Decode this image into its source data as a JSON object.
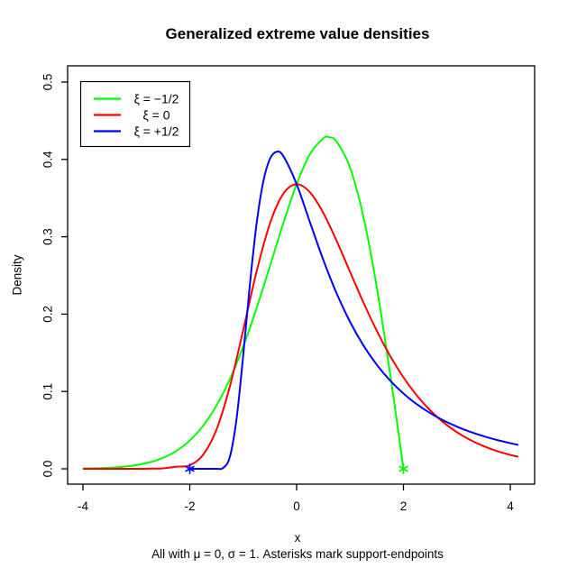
{
  "chart_data": {
    "type": "line",
    "title": "Generalized extreme value densities",
    "xlabel": "x",
    "ylabel": "Density",
    "caption": "All with μ = 0, σ = 1. Asterisks mark support-endpoints",
    "xlim": [
      -4,
      4
    ],
    "ylim": [
      0.0,
      0.5
    ],
    "grid": false,
    "xticks": {
      "values": [
        -4,
        -2,
        0,
        2,
        4
      ],
      "labels": [
        "-4",
        "-2",
        "0",
        "2",
        "4"
      ]
    },
    "yticks": {
      "values": [
        0.0,
        0.1,
        0.2,
        0.3,
        0.4,
        0.5
      ],
      "labels": [
        "0.0",
        "0.1",
        "0.2",
        "0.3",
        "0.4",
        "0.5"
      ]
    },
    "legend": {
      "position": "top-left",
      "entries": [
        {
          "label": "ξ = −1/2",
          "color": "#00FF00"
        },
        {
          "label": "ξ = 0",
          "color": "#FF0000"
        },
        {
          "label": "ξ = +1/2",
          "color": "#0000FF"
        }
      ]
    },
    "series": [
      {
        "id": "xi-minus-half",
        "label": "ξ = −1/2",
        "color": "#00FF00",
        "points": [
          [
            -4,
            0.00037
          ],
          [
            -3.75,
            0.00074
          ],
          [
            -3.5,
            0.00143
          ],
          [
            -3.25,
            0.00267
          ],
          [
            -3,
            0.00483
          ],
          [
            -2.75,
            0.00843
          ],
          [
            -2.5,
            0.01424
          ],
          [
            -2.25,
            0.02324
          ],
          [
            -2,
            0.03663
          ],
          [
            -1.75,
            0.05574
          ],
          [
            -1.5,
            0.08185
          ],
          [
            -1.25,
            0.11589
          ],
          [
            -1,
            0.1581
          ],
          [
            -0.75,
            0.2076
          ],
          [
            -0.5,
            0.26201
          ],
          [
            -0.25,
            0.31732
          ],
          [
            0,
            0.36788
          ],
          [
            0.25,
            0.40691
          ],
          [
            0.5,
            0.42733
          ],
          [
            0.6,
            0.42884
          ],
          [
            0.75,
            0.42289
          ],
          [
            1,
            0.3894
          ],
          [
            1.25,
            0.32581
          ],
          [
            1.5,
            0.23485
          ],
          [
            1.75,
            0.12306
          ],
          [
            1.875,
            0.06226
          ],
          [
            1.95,
            0.02498
          ],
          [
            2,
            0
          ]
        ]
      },
      {
        "id": "xi-zero",
        "label": "ξ = 0",
        "color": "#FF0000",
        "points": [
          [
            -4,
            0
          ],
          [
            -3.5,
            0
          ],
          [
            -3,
            4e-05
          ],
          [
            -2.75,
            0.00025
          ],
          [
            -2.5,
            0.00062
          ],
          [
            -2.25,
            0.00272
          ],
          [
            -2,
            0.00456
          ],
          [
            -1.75,
            0.01824
          ],
          [
            -1.5,
            0.0507
          ],
          [
            -1.25,
            0.10642
          ],
          [
            -1,
            0.17937
          ],
          [
            -0.75,
            0.25489
          ],
          [
            -0.5,
            0.31704
          ],
          [
            -0.25,
            0.35558
          ],
          [
            0,
            0.36788
          ],
          [
            0.25,
            0.35745
          ],
          [
            0.5,
            0.3307
          ],
          [
            0.75,
            0.29453
          ],
          [
            1,
            0.25465
          ],
          [
            1.25,
            0.21517
          ],
          [
            1.5,
            0.1785
          ],
          [
            1.75,
            0.14604
          ],
          [
            2,
            0.11822
          ],
          [
            2.25,
            0.09486
          ],
          [
            2.5,
            0.07562
          ],
          [
            2.75,
            0.05995
          ],
          [
            3,
            0.04737
          ],
          [
            3.25,
            0.0373
          ],
          [
            3.5,
            0.0293
          ],
          [
            3.75,
            0.02297
          ],
          [
            4,
            0.01798
          ],
          [
            4.15,
            0.01553
          ]
        ]
      },
      {
        "id": "xi-plus-half",
        "label": "ξ = +1/2",
        "color": "#0000FF",
        "points": [
          [
            -2,
            0
          ],
          [
            -1.75,
            0
          ],
          [
            -1.5,
            1e-05
          ],
          [
            -1.375,
            0.00117
          ],
          [
            -1.25,
            0.01547
          ],
          [
            -1.125,
            0.06429
          ],
          [
            -1,
            0.14653
          ],
          [
            -0.875,
            0.23825
          ],
          [
            -0.75,
            0.31664
          ],
          [
            -0.625,
            0.37101
          ],
          [
            -0.5,
            0.40062
          ],
          [
            -0.375,
            0.40982
          ],
          [
            -0.25,
            0.40434
          ],
          [
            0,
            0.36788
          ],
          [
            0.25,
            0.31871
          ],
          [
            0.5,
            0.26997
          ],
          [
            0.75,
            0.22667
          ],
          [
            1,
            0.18999
          ],
          [
            1.25,
            0.15958
          ],
          [
            1.5,
            0.13462
          ],
          [
            1.75,
            0.11415
          ],
          [
            2,
            0.09735
          ],
          [
            2.25,
            0.08351
          ],
          [
            2.5,
            0.07206
          ],
          [
            2.75,
            0.06252
          ],
          [
            3,
            0.05454
          ],
          [
            3.25,
            0.04782
          ],
          [
            3.5,
            0.04213
          ],
          [
            3.75,
            0.03729
          ],
          [
            4,
            0.03314
          ],
          [
            4.15,
            0.03093
          ]
        ]
      }
    ],
    "markers": [
      {
        "x": -2,
        "y": 0,
        "symbol": "*",
        "color": "#0000FF",
        "meaning": "support endpoint of ξ = +1/2"
      },
      {
        "x": 2,
        "y": 0,
        "symbol": "*",
        "color": "#00FF00",
        "meaning": "support endpoint of ξ = −1/2"
      }
    ]
  }
}
